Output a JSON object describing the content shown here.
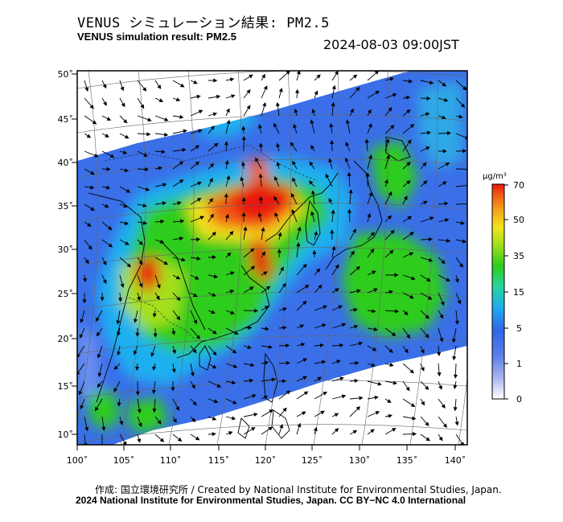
{
  "header": {
    "title_jp": "VENUS シミュレーション結果: PM2.5",
    "title_en": "VENUS simulation result: PM2.5",
    "timestamp": "2024-08-03 09:00JST"
  },
  "map": {
    "lat_labels": [
      "50˚",
      "45˚",
      "40˚",
      "35˚",
      "30˚",
      "25˚",
      "20˚",
      "15˚",
      "10˚"
    ],
    "lon_labels": [
      "100˚",
      "105˚",
      "110˚",
      "115˚",
      "120˚",
      "125˚",
      "130˚",
      "135˚",
      "140˚"
    ],
    "lat_range": [
      9,
      51
    ],
    "lon_range": [
      100,
      142
    ]
  },
  "colorbar": {
    "unit": "μg/m³",
    "tick_labels": [
      "0",
      "1",
      "5",
      "15",
      "35",
      "50",
      "70"
    ],
    "colors": [
      "#ffffff",
      "#a8b4f0",
      "#3a6fe8",
      "#1fb0f0",
      "#20d27a",
      "#2ecc1a",
      "#a4e01a",
      "#f4e21a",
      "#f5a21a",
      "#f05a14",
      "#e8180c"
    ]
  },
  "footer": {
    "credit": "作成: 国立環境研究所 / Created by National Institute for Environmental Studies, Japan.",
    "license": "2024 National Institute for Environmental Studies, Japan. CC BY−NC 4.0 International"
  }
}
